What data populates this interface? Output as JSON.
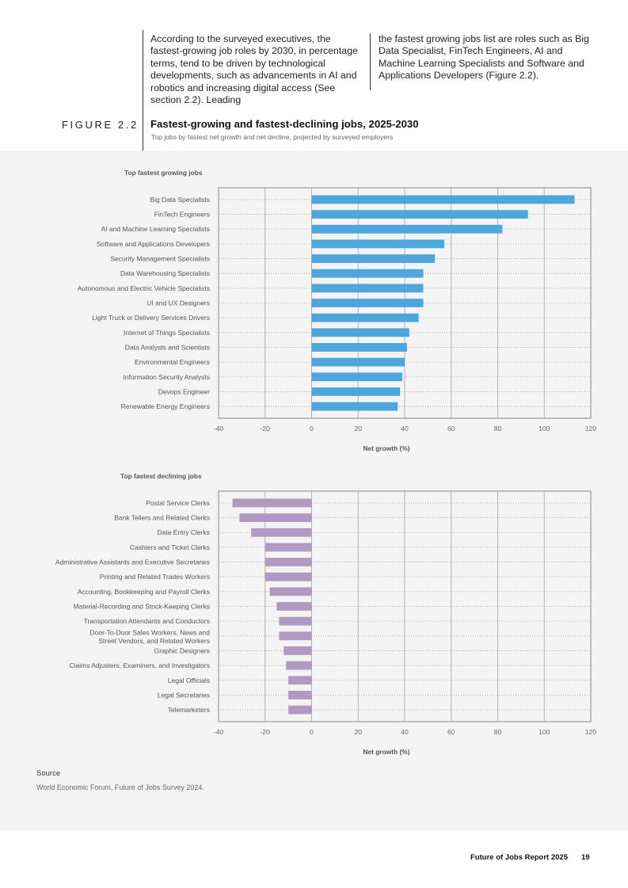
{
  "intro": {
    "left": "According to the surveyed executives, the fastest-growing job roles by 2030, in percentage terms, tend to be driven by technological developments, such as advancements in AI and robotics and increasing digital access (See section 2.2). Leading",
    "right": "the fastest growing jobs list are roles such as Big Data Specialist, FinTech Engineers, AI and Machine Learning Specialists and Software and Applications Developers (Figure 2.2)."
  },
  "figure": {
    "label": "FIGURE 2.2",
    "title": "Fastest-growing and fastest-declining jobs, 2025-2030",
    "subtitle": "Top jobs by fastest net growth and net decline, projected by surveyed employers"
  },
  "chart_data": [
    {
      "type": "bar",
      "orientation": "horizontal",
      "title": "Top fastest growing jobs",
      "xlabel": "Net growth (%)",
      "xlim": [
        -40,
        120
      ],
      "xticks": [
        -40,
        -20,
        0,
        20,
        40,
        60,
        80,
        100,
        120
      ],
      "color": "#4ea7dc",
      "categories": [
        "Big Data Specialists",
        "FinTech Engineers",
        "AI and Machine Learning Specialists",
        "Software and Applications Developers",
        "Security Management Specialists",
        "Data Warehousing Specialists",
        "Autonomous and Electric Vehicle Specialists",
        "UI and UX Designers",
        "Light Truck or Delivery Services Drivers",
        "Internet of Things Specialists",
        "Data Analysts and Scientists",
        "Environmental Engineers",
        "Information Security Analysts",
        "Devops Engineer",
        "Renewable Energy Engineers"
      ],
      "values": [
        113,
        93,
        82,
        57,
        53,
        48,
        48,
        48,
        46,
        42,
        41,
        40,
        39,
        38,
        37
      ]
    },
    {
      "type": "bar",
      "orientation": "horizontal",
      "title": "Top fastest declining jobs",
      "xlabel": "Net growth (%)",
      "xlim": [
        -40,
        120
      ],
      "xticks": [
        -40,
        -20,
        0,
        20,
        40,
        60,
        80,
        100,
        120
      ],
      "color": "#af9ac4",
      "categories": [
        "Postal Service Clerks",
        "Bank Tellers and Related Clerks",
        "Data Entry Clerks",
        "Cashiers and Ticket Clerks",
        "Administrative Assistants and Executive Secretaries",
        "Printing and Related Trades Workers",
        "Accounting, Bookkeeping and Payroll Clerks",
        "Material-Recording and Stock-Keeping Clerks",
        "Transportation Attendants and Conductors",
        "Door-To-Door Sales Workers, News and Street Vendors, and Related Workers",
        "Graphic Designers",
        "Claims Adjusters, Examiners, and Investigators",
        "Legal Officials",
        "Legal Secretaries",
        "Telemarketers"
      ],
      "labels_display": [
        "Postal Service Clerks",
        "Bank Tellers and Related Clerks",
        "Data Entry Clerks",
        "Cashiers and Ticket Clerks",
        "Administrative Assistants and Executive Secretaries",
        "Printing and Related Trades Workers",
        "Accounting, Bookkeeping and Payroll Clerks",
        "Material-Recording and Stock-Keeping Clerks",
        "Transportation Attendants and Conductors",
        "Door-To-Door Sales Workers, News and|Street Vendors, and Related Workers",
        "Graphic Designers",
        "Claims Adjusters, Examiners, and Investigators",
        "Legal Officials",
        "Legal Secretaries",
        "Telemarketers"
      ],
      "values": [
        -34,
        -31,
        -26,
        -20,
        -20,
        -20,
        -18,
        -15,
        -14,
        -14,
        -12,
        -11,
        -10,
        -10,
        -10
      ]
    }
  ],
  "source": {
    "heading": "Source",
    "text": "World Economic Forum, Future of Jobs Survey 2024."
  },
  "footer": {
    "report": "Future of Jobs Report 2025",
    "page": "19"
  }
}
